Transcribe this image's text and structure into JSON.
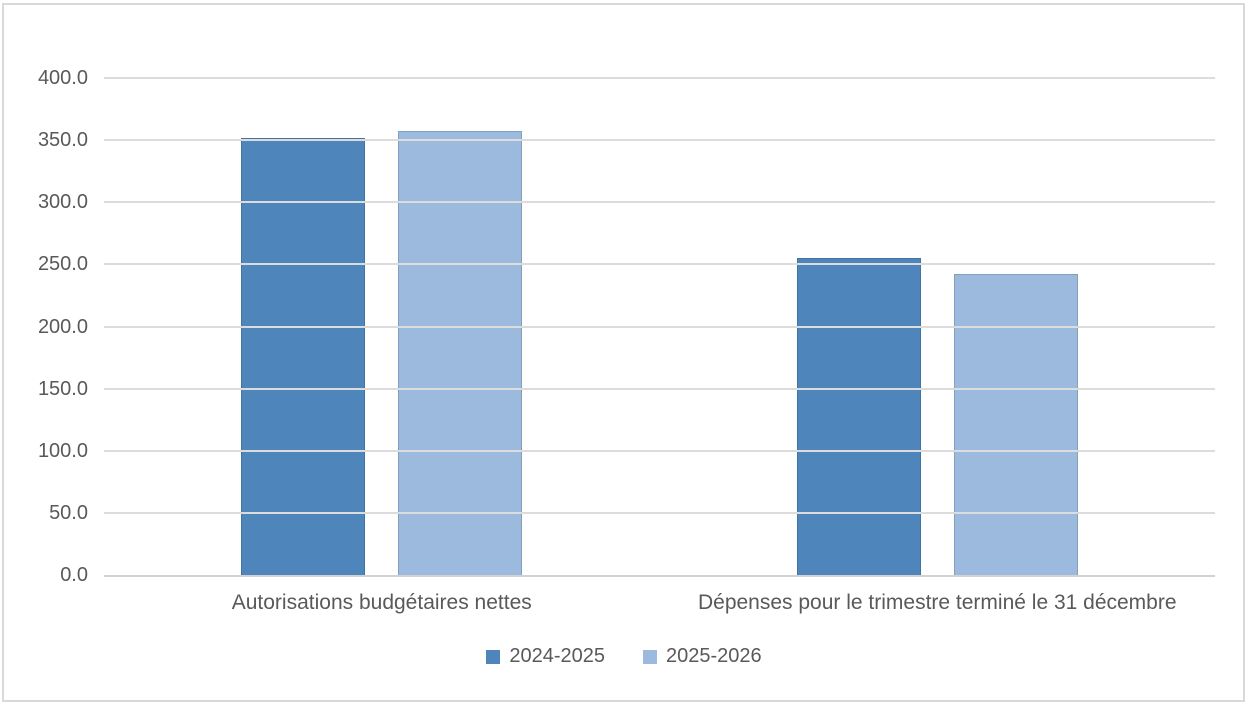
{
  "chart_data": {
    "type": "bar",
    "title": "",
    "xlabel": "",
    "ylabel": "",
    "categories": [
      "Autorisations budgétaires nettes",
      "Dépenses pour le trimestre terminé le 31 décembre"
    ],
    "series": [
      {
        "name": "2024-2025",
        "color": "#4e86bc",
        "values": [
          352,
          255
        ]
      },
      {
        "name": "2025-2026",
        "color": "#9bbade",
        "values": [
          357,
          242
        ]
      }
    ],
    "ylim": [
      0,
      400
    ],
    "ytick_step": 50,
    "ytick_labels": [
      "0.0",
      "50.0",
      "100.0",
      "150.0",
      "200.0",
      "250.0",
      "300.0",
      "350.0",
      "400.0"
    ],
    "grid": true,
    "legend_position": "bottom",
    "colors": {
      "gridline": "#dcdcdc",
      "axis_line": "#d2d2d2",
      "text": "#595959",
      "chart_border": "#d9d9d9",
      "background": "#ffffff"
    }
  }
}
